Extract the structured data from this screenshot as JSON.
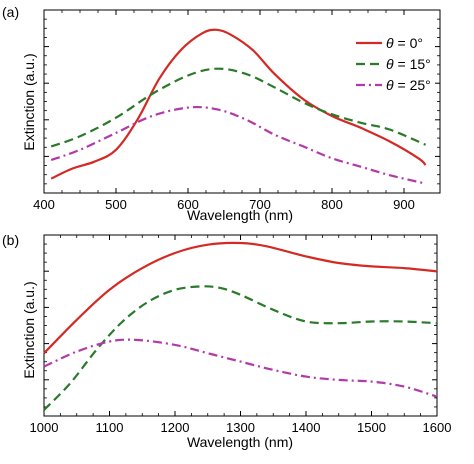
{
  "chart_data": [
    {
      "type": "line",
      "panel_label": "(a)",
      "xlabel": "Wavelength (nm)",
      "ylabel": "Extinction (a.u.)",
      "xlim": [
        400,
        950
      ],
      "xticks": [
        400,
        500,
        600,
        700,
        800,
        900
      ],
      "y_tick_labels_shown": false,
      "grid": false,
      "legend": {
        "placement": "top-right",
        "entries": [
          {
            "theta": "θ",
            "text": " = 0°"
          },
          {
            "theta": "θ",
            "text": " = 15°"
          },
          {
            "theta": "θ",
            "text": " = 25°"
          }
        ]
      },
      "series": [
        {
          "color": "#d42a24",
          "dash": "solid",
          "x": [
            410,
            440,
            470,
            500,
            530,
            560,
            590,
            620,
            640,
            660,
            690,
            720,
            760,
            800,
            840,
            880,
            920,
            930
          ],
          "y": [
            0.05,
            0.11,
            0.15,
            0.22,
            0.4,
            0.64,
            0.81,
            0.91,
            0.93,
            0.9,
            0.81,
            0.67,
            0.52,
            0.42,
            0.35,
            0.27,
            0.17,
            0.13
          ]
        },
        {
          "color": "#2a7a2a",
          "dash": "dashed",
          "x": [
            410,
            450,
            500,
            550,
            600,
            640,
            680,
            720,
            760,
            800,
            840,
            880,
            930
          ],
          "y": [
            0.24,
            0.3,
            0.41,
            0.55,
            0.66,
            0.7,
            0.67,
            0.59,
            0.5,
            0.43,
            0.38,
            0.34,
            0.25
          ]
        },
        {
          "color": "#b23aa8",
          "dash": "dashdot",
          "x": [
            410,
            450,
            500,
            550,
            600,
            640,
            680,
            720,
            760,
            800,
            840,
            880,
            930
          ],
          "y": [
            0.16,
            0.22,
            0.32,
            0.42,
            0.47,
            0.46,
            0.4,
            0.31,
            0.24,
            0.17,
            0.12,
            0.07,
            0.02
          ]
        }
      ]
    },
    {
      "type": "line",
      "panel_label": "(b)",
      "xlabel": "Wavelength (nm)",
      "ylabel": "Extinction (a.u.)",
      "xlim": [
        1000,
        1600
      ],
      "xticks": [
        1000,
        1100,
        1200,
        1300,
        1400,
        1500,
        1600
      ],
      "y_tick_labels_shown": false,
      "grid": false,
      "series": [
        {
          "color": "#d42a24",
          "dash": "solid",
          "x": [
            1000,
            1050,
            1100,
            1150,
            1200,
            1250,
            1300,
            1340,
            1400,
            1450,
            1500,
            1550,
            1600
          ],
          "y": [
            0.34,
            0.54,
            0.72,
            0.85,
            0.94,
            0.99,
            1.0,
            0.98,
            0.92,
            0.88,
            0.86,
            0.85,
            0.83
          ]
        },
        {
          "color": "#2a7a2a",
          "dash": "dashed",
          "x": [
            1000,
            1040,
            1080,
            1120,
            1160,
            1200,
            1240,
            1270,
            1300,
            1350,
            1400,
            1450,
            1500,
            1550,
            1600
          ],
          "y": [
            0.0,
            0.16,
            0.36,
            0.53,
            0.65,
            0.72,
            0.74,
            0.73,
            0.69,
            0.6,
            0.53,
            0.52,
            0.53,
            0.53,
            0.52
          ]
        },
        {
          "color": "#b23aa8",
          "dash": "dashdot",
          "x": [
            1000,
            1050,
            1100,
            1140,
            1200,
            1250,
            1300,
            1350,
            1400,
            1450,
            1500,
            1550,
            1600
          ],
          "y": [
            0.26,
            0.35,
            0.41,
            0.42,
            0.39,
            0.34,
            0.29,
            0.24,
            0.2,
            0.18,
            0.17,
            0.14,
            0.08
          ]
        }
      ]
    }
  ]
}
